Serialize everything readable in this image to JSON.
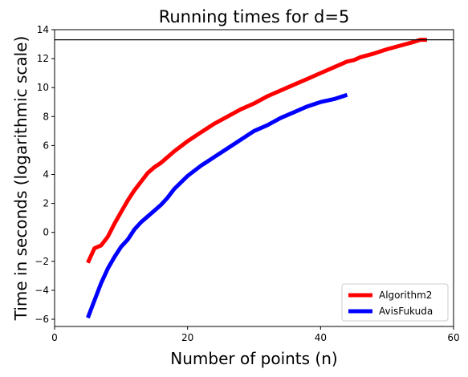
{
  "chart_data": {
    "type": "line",
    "title": "Running times for d=5",
    "xlabel": "Number of points (n)",
    "ylabel": "Time in seconds (logarithmic scale)",
    "xlim": [
      0,
      60
    ],
    "ylim": [
      -6.5,
      14
    ],
    "xticks": [
      0,
      20,
      40,
      60
    ],
    "yticks": [
      -6,
      -4,
      -2,
      0,
      2,
      4,
      6,
      8,
      10,
      12,
      14
    ],
    "grid": false,
    "legend_position": "lower-right",
    "reference_line": {
      "y": 13.3,
      "color": "#000000"
    },
    "series": [
      {
        "name": "Algorithm2",
        "color": "#ff0000",
        "x": [
          5,
          6,
          7,
          8,
          9,
          10,
          11,
          12,
          13,
          14,
          15,
          16,
          17,
          18,
          20,
          22,
          24,
          26,
          28,
          30,
          32,
          34,
          36,
          38,
          40,
          42,
          44,
          45,
          46,
          48,
          50,
          52,
          54,
          55,
          56
        ],
        "y": [
          -2.1,
          -1.1,
          -0.9,
          -0.3,
          0.6,
          1.4,
          2.2,
          2.9,
          3.5,
          4.1,
          4.5,
          4.8,
          5.2,
          5.6,
          6.3,
          6.9,
          7.5,
          8.0,
          8.5,
          8.9,
          9.4,
          9.8,
          10.2,
          10.6,
          11.0,
          11.4,
          11.8,
          11.9,
          12.1,
          12.35,
          12.65,
          12.9,
          13.15,
          13.3,
          13.3
        ]
      },
      {
        "name": "AvisFukuda",
        "color": "#0000ff",
        "x": [
          5,
          6,
          7,
          8,
          9,
          10,
          11,
          12,
          13,
          14,
          15,
          16,
          17,
          18,
          20,
          22,
          24,
          26,
          28,
          30,
          32,
          34,
          36,
          38,
          40,
          42,
          44
        ],
        "y": [
          -5.9,
          -4.7,
          -3.5,
          -2.5,
          -1.7,
          -1.0,
          -0.5,
          0.2,
          0.7,
          1.1,
          1.5,
          1.9,
          2.4,
          3.0,
          3.9,
          4.6,
          5.2,
          5.8,
          6.4,
          7.0,
          7.4,
          7.9,
          8.3,
          8.7,
          9.0,
          9.2,
          9.5
        ]
      }
    ]
  }
}
